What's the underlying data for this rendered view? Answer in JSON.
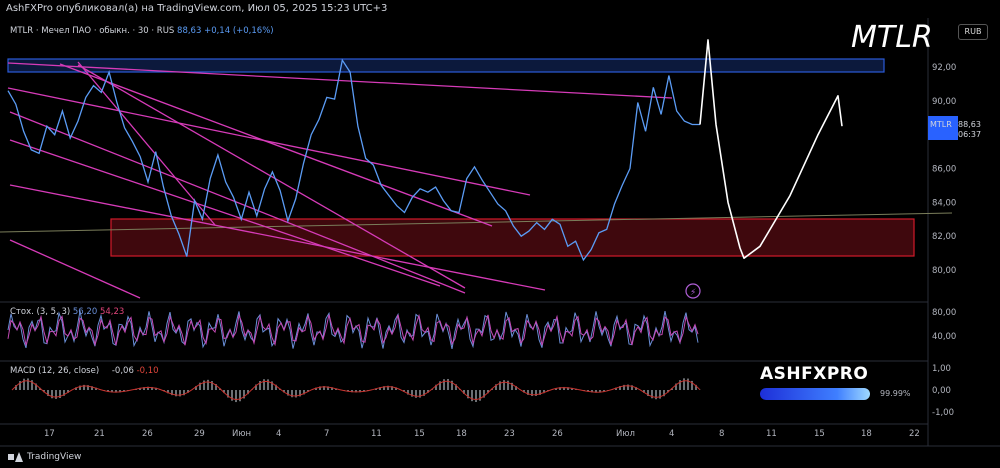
{
  "header": {
    "published": "AshFXPro опубликовал(а) на TradingView.com, Июл 05, 2025 15:23 UTC+3"
  },
  "legend": {
    "symbol": "MTLR · Мечел ПАО · обыкн. · 30 · RUS",
    "price": "88,63",
    "change": "+0,14 (+0,16%)"
  },
  "ticker_annotation": "MTLR",
  "currency_button": "RUB",
  "price_tag": {
    "symbol": "MTLR",
    "price": "88,63",
    "timer": "06:37"
  },
  "stoch": {
    "label": "Стох. (3, 5, 3)",
    "k": "56,20",
    "d": "54,23"
  },
  "macd": {
    "label": "MACD (12, 26, close)",
    "v1": "-0,06",
    "v2": "-0,10"
  },
  "brand": {
    "name": "ASHFXPRO",
    "percent": "99.99%"
  },
  "footer": {
    "logo_text": "TradingView"
  },
  "colors": {
    "price_line": "#5b9cf5",
    "trend_lines": "#d63bb8",
    "resistance_zone": "#2a5bd7",
    "support_zone": "#d11a2a",
    "stoch_line": "#8a4fc7",
    "macd_hist": "#9aa0a6"
  },
  "chart_data": {
    "type": "line",
    "title": "MTLR",
    "price_axis": {
      "ticks": [
        "92,00",
        "90,00",
        "88,00",
        "86,00",
        "84,00",
        "82,00",
        "80,00"
      ],
      "range": [
        79,
        94
      ]
    },
    "time_axis": {
      "ticks": [
        "17",
        "21",
        "26",
        "29",
        "Июн",
        "4",
        "7",
        "11",
        "15",
        "18",
        "23",
        "26",
        "Июл",
        "4",
        "8",
        "11",
        "15",
        "18",
        "22"
      ]
    },
    "stoch_axis": {
      "ticks": [
        "80,00",
        "40,00"
      ]
    },
    "macd_axis": {
      "ticks": [
        "1,00",
        "0,00",
        "-1,00"
      ]
    },
    "series": [
      {
        "name": "MTLR",
        "values": [
          90.6,
          89.8,
          88.2,
          87.1,
          86.9,
          88.5,
          88.0,
          89.4,
          87.8,
          88.8,
          90.2,
          90.9,
          90.5,
          91.7,
          89.9,
          88.4,
          87.6,
          86.7,
          85.2,
          87.0,
          84.9,
          83.2,
          82.1,
          80.8,
          84.1,
          83.0,
          85.4,
          86.8,
          85.2,
          84.3,
          83.0,
          84.6,
          83.2,
          84.8,
          85.8,
          84.7,
          82.9,
          84.2,
          86.3,
          88.0,
          88.9,
          90.2,
          90.1,
          92.4,
          91.7,
          88.5,
          86.6,
          86.2,
          85.0,
          84.4,
          83.8,
          83.4,
          84.3,
          84.8,
          84.6,
          84.9,
          84.1,
          83.5,
          83.4,
          85.4,
          86.1,
          85.3,
          84.6,
          83.9,
          83.5,
          82.6,
          82.0,
          82.3,
          82.8,
          82.4,
          83.0,
          82.7,
          81.4,
          81.7,
          80.6,
          81.2,
          82.2,
          82.4,
          83.9,
          85.0,
          86.0,
          89.9,
          88.2,
          90.8,
          89.2,
          91.5,
          89.4,
          88.8,
          88.6,
          88.6
        ]
      }
    ],
    "annotations": {
      "resistance_zone": [
        91.7,
        92.4
      ],
      "support_zone": [
        80.8,
        83.1
      ],
      "projection": [
        88.6,
        93.6,
        88.6,
        84.0,
        81.3,
        80.7,
        81.4,
        84.4,
        88.0,
        90.3,
        88.5
      ]
    }
  }
}
